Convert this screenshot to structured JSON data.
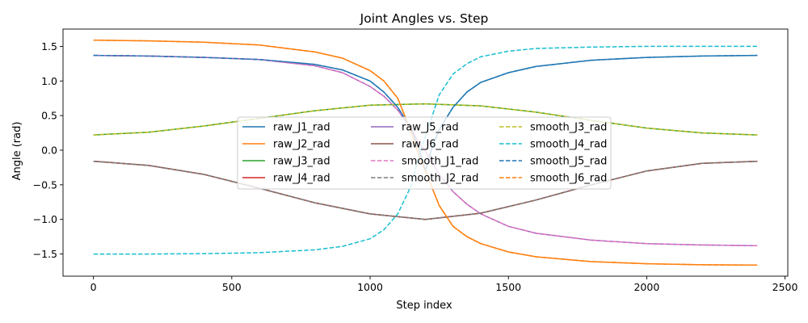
{
  "chart_data": {
    "type": "line",
    "title": "Joint Angles vs. Step",
    "xlabel": "Step index",
    "ylabel": "Angle (rad)",
    "xlim": [
      -110,
      2510
    ],
    "ylim": [
      -1.82,
      1.75
    ],
    "xticks": [
      0,
      500,
      1000,
      1500,
      2000,
      2500
    ],
    "yticks": [
      -1.5,
      -1.0,
      -0.5,
      0.0,
      0.5,
      1.0,
      1.5
    ],
    "grid": false,
    "legend": {
      "placement": "center",
      "columns": 3
    },
    "series": [
      {
        "name": "raw_J1_rad",
        "color": "#1f77b4",
        "style": "solid",
        "x": [
          0,
          200,
          400,
          600,
          800,
          900,
          1000,
          1050,
          1100,
          1150,
          1175,
          1200,
          1225,
          1250,
          1300,
          1350,
          1400,
          1500,
          1600,
          1800,
          2000,
          2200,
          2400
        ],
        "y": [
          1.37,
          1.36,
          1.34,
          1.31,
          1.24,
          1.16,
          1.0,
          0.84,
          0.62,
          0.3,
          0.05,
          -0.3,
          0.05,
          0.3,
          0.62,
          0.84,
          0.98,
          1.12,
          1.21,
          1.3,
          1.34,
          1.36,
          1.37
        ]
      },
      {
        "name": "raw_J2_rad",
        "color": "#ff7f0e",
        "style": "solid",
        "x": [
          0,
          200,
          400,
          600,
          800,
          900,
          1000,
          1050,
          1100,
          1150,
          1175,
          1200,
          1225,
          1250,
          1300,
          1350,
          1400,
          1500,
          1600,
          1800,
          2000,
          2200,
          2400
        ],
        "y": [
          1.59,
          1.58,
          1.56,
          1.52,
          1.42,
          1.33,
          1.15,
          1.0,
          0.75,
          0.25,
          -0.05,
          -0.3,
          -0.55,
          -0.8,
          -1.1,
          -1.25,
          -1.35,
          -1.47,
          -1.54,
          -1.61,
          -1.64,
          -1.655,
          -1.66
        ]
      },
      {
        "name": "raw_J3_rad",
        "color": "#2ca02c",
        "style": "solid",
        "x": [
          0,
          200,
          400,
          600,
          800,
          1000,
          1200,
          1400,
          1600,
          1800,
          2000,
          2200,
          2400
        ],
        "y": [
          0.22,
          0.26,
          0.35,
          0.46,
          0.57,
          0.65,
          0.67,
          0.64,
          0.55,
          0.43,
          0.32,
          0.25,
          0.22
        ]
      },
      {
        "name": "raw_J4_rad",
        "color": "#d62728",
        "style": "solid",
        "x": [
          0,
          200,
          400,
          600,
          800,
          1000,
          1200,
          1400,
          1600,
          1800,
          2000,
          2200,
          2400
        ],
        "y": [
          -0.16,
          -0.22,
          -0.35,
          -0.55,
          -0.76,
          -0.92,
          -1.0,
          -0.91,
          -0.72,
          -0.5,
          -0.3,
          -0.19,
          -0.16
        ]
      },
      {
        "name": "raw_J5_rad",
        "color": "#9467bd",
        "style": "solid",
        "x": [
          0,
          200,
          400,
          600,
          800,
          900,
          1000,
          1050,
          1100,
          1150,
          1175,
          1200,
          1225,
          1250,
          1300,
          1350,
          1400,
          1500,
          1600,
          1800,
          2000,
          2200,
          2400
        ],
        "y": [
          1.37,
          1.36,
          1.34,
          1.31,
          1.22,
          1.12,
          0.92,
          0.78,
          0.58,
          0.3,
          0.12,
          -0.02,
          -0.18,
          -0.35,
          -0.6,
          -0.78,
          -0.92,
          -1.1,
          -1.2,
          -1.3,
          -1.35,
          -1.37,
          -1.38
        ]
      },
      {
        "name": "raw_J6_rad",
        "color": "#8c564b",
        "style": "solid",
        "x": [
          0,
          200,
          400,
          600,
          800,
          1000,
          1200,
          1400,
          1600,
          1800,
          2000,
          2200,
          2400
        ],
        "y": [
          -0.16,
          -0.22,
          -0.35,
          -0.55,
          -0.76,
          -0.92,
          -1.0,
          -0.91,
          -0.72,
          -0.5,
          -0.3,
          -0.19,
          -0.16
        ]
      },
      {
        "name": "smooth_J1_rad",
        "color": "#e377c2",
        "style": "dashed",
        "x": [
          0,
          200,
          400,
          600,
          800,
          900,
          1000,
          1050,
          1100,
          1150,
          1175,
          1200,
          1225,
          1250,
          1300,
          1350,
          1400,
          1500,
          1600,
          1800,
          2000,
          2200,
          2400
        ],
        "y": [
          1.37,
          1.36,
          1.34,
          1.31,
          1.22,
          1.12,
          0.92,
          0.78,
          0.58,
          0.3,
          0.12,
          -0.02,
          -0.18,
          -0.35,
          -0.6,
          -0.78,
          -0.92,
          -1.1,
          -1.2,
          -1.3,
          -1.35,
          -1.37,
          -1.38
        ]
      },
      {
        "name": "smooth_J2_rad",
        "color": "#7f7f7f",
        "style": "dashed",
        "x": [
          0,
          200,
          400,
          600,
          800,
          1000,
          1200,
          1400,
          1600,
          1800,
          2000,
          2200,
          2400
        ],
        "y": [
          -0.16,
          -0.22,
          -0.35,
          -0.55,
          -0.76,
          -0.92,
          -1.0,
          -0.91,
          -0.72,
          -0.5,
          -0.3,
          -0.19,
          -0.16
        ]
      },
      {
        "name": "smooth_J3_rad",
        "color": "#bcbd22",
        "style": "dashed",
        "x": [
          0,
          200,
          400,
          600,
          800,
          1000,
          1200,
          1400,
          1600,
          1800,
          2000,
          2200,
          2400
        ],
        "y": [
          0.22,
          0.26,
          0.35,
          0.46,
          0.57,
          0.65,
          0.67,
          0.64,
          0.55,
          0.43,
          0.32,
          0.25,
          0.22
        ]
      },
      {
        "name": "smooth_J4_rad",
        "color": "#17becf",
        "style": "dashed",
        "x": [
          0,
          200,
          400,
          600,
          800,
          900,
          1000,
          1050,
          1100,
          1150,
          1175,
          1200,
          1225,
          1250,
          1300,
          1350,
          1400,
          1500,
          1600,
          1800,
          2000,
          2200,
          2400
        ],
        "y": [
          -1.5,
          -1.5,
          -1.495,
          -1.48,
          -1.44,
          -1.39,
          -1.28,
          -1.15,
          -0.92,
          -0.5,
          -0.1,
          0.2,
          0.5,
          0.8,
          1.1,
          1.25,
          1.35,
          1.43,
          1.47,
          1.49,
          1.5,
          1.5,
          1.5
        ]
      },
      {
        "name": "smooth_J5_rad",
        "color": "#1f77b4",
        "style": "dashed",
        "x": [
          0,
          200,
          400,
          600,
          800,
          900,
          1000,
          1050,
          1100,
          1150,
          1175,
          1200,
          1225,
          1250,
          1300,
          1350,
          1400,
          1500,
          1600,
          1800,
          2000,
          2200,
          2400
        ],
        "y": [
          1.37,
          1.36,
          1.34,
          1.31,
          1.24,
          1.16,
          1.0,
          0.84,
          0.62,
          0.3,
          0.05,
          -0.3,
          0.05,
          0.3,
          0.62,
          0.84,
          0.98,
          1.12,
          1.21,
          1.3,
          1.34,
          1.36,
          1.37
        ]
      },
      {
        "name": "smooth_J6_rad",
        "color": "#ff7f0e",
        "style": "dashed",
        "x": [
          0,
          200,
          400,
          600,
          800,
          900,
          1000,
          1050,
          1100,
          1150,
          1175,
          1200,
          1225,
          1250,
          1300,
          1350,
          1400,
          1500,
          1600,
          1800,
          2000,
          2200,
          2400
        ],
        "y": [
          1.59,
          1.58,
          1.56,
          1.52,
          1.42,
          1.33,
          1.15,
          1.0,
          0.75,
          0.25,
          -0.05,
          -0.3,
          -0.55,
          -0.8,
          -1.1,
          -1.25,
          -1.35,
          -1.47,
          -1.54,
          -1.61,
          -1.64,
          -1.655,
          -1.66
        ]
      }
    ]
  }
}
